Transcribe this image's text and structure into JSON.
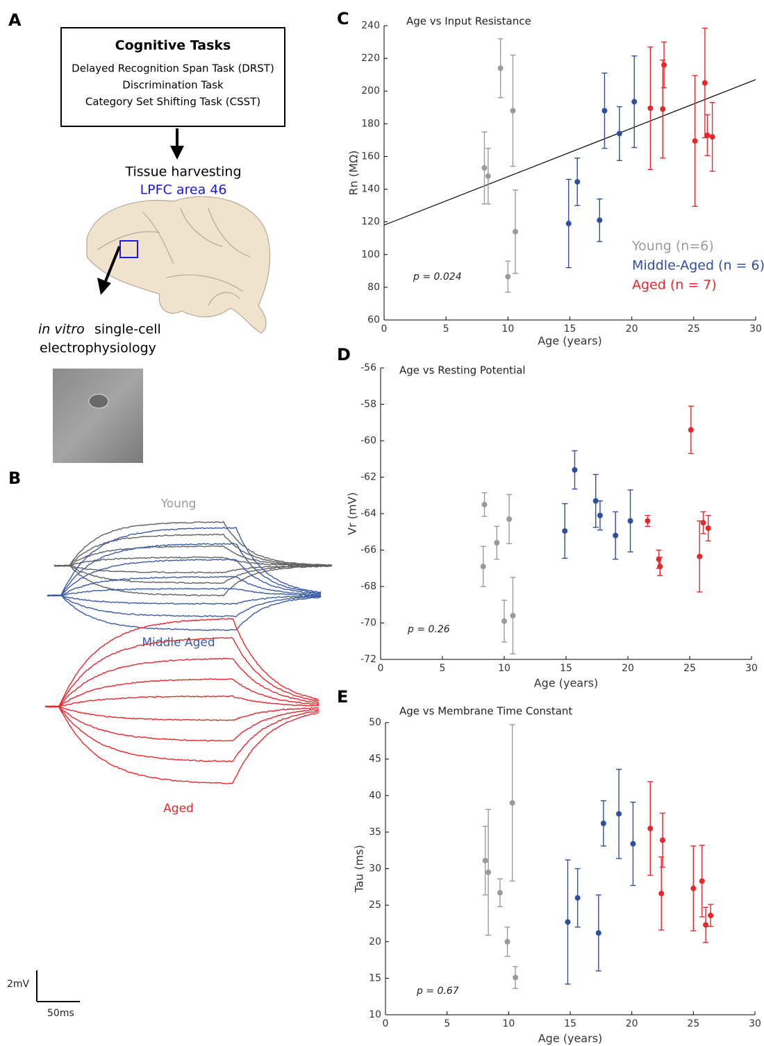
{
  "panel_a": {
    "label": "A",
    "box_title": "Cognitive Tasks",
    "box_lines": [
      "Delayed Recognition Span Task (DRST)",
      "Discrimination Task",
      "Category Set Shifting Task (CSST)"
    ],
    "step": "Tissue harvesting",
    "region": "LPFC area 46",
    "method_italic": "in vitro",
    "method": "single-cell",
    "method_line2": "electrophysiology"
  },
  "panel_b": {
    "label": "B",
    "traces": [
      {
        "label": "Young",
        "label_color": "#9a9a9a",
        "color": "#606060"
      },
      {
        "label": "Middle Aged",
        "label_color": "#3a5aa8",
        "color": "#3a5aa8"
      },
      {
        "label": "Aged",
        "label_color": "#e8262b",
        "color": "#e8262b"
      }
    ],
    "scale_y": "2mV",
    "scale_x": "50ms"
  },
  "chart_data": [
    {
      "type": "scatter",
      "panel": "C",
      "title": "Age vs Input Resistance",
      "x_label": "Age (years)",
      "y_label": "Rn (MΩ)",
      "annotation": "p = 0.024",
      "xlim": [
        0,
        30
      ],
      "xticks": [
        0,
        5,
        10,
        15,
        20,
        25,
        30
      ],
      "ylim": [
        60,
        240
      ],
      "yticks": [
        60,
        80,
        100,
        120,
        140,
        160,
        180,
        200,
        220,
        240
      ],
      "fit": {
        "x": [
          0,
          30
        ],
        "values": [
          118,
          207
        ],
        "color": "#000000"
      },
      "series": [
        {
          "name": "Young (n=6)",
          "color": "#9a9a9a",
          "x": [
            8.1,
            8.4,
            9.4,
            10.0,
            10.4,
            10.6
          ],
          "values": [
            153,
            148,
            214,
            86.5,
            188,
            114
          ],
          "errors": [
            22,
            17,
            18,
            9.5,
            34,
            25.5
          ]
        },
        {
          "name": "Middle-Aged (n = 6)",
          "color": "#2f4e9e",
          "x": [
            14.9,
            15.6,
            17.4,
            17.8,
            19.0,
            20.2
          ],
          "values": [
            119,
            144.5,
            121,
            188,
            174,
            193.5
          ],
          "errors": [
            27,
            14.5,
            13,
            23,
            16.5,
            28
          ]
        },
        {
          "name": "Aged (n = 7)",
          "color": "#e8262b",
          "x": [
            21.5,
            22.5,
            22.6,
            25.1,
            25.9,
            26.1,
            26.5
          ],
          "values": [
            189.5,
            189,
            216,
            169.5,
            205,
            173,
            172
          ],
          "errors": [
            37.5,
            30,
            14,
            40,
            33.5,
            12.5,
            21
          ]
        }
      ]
    },
    {
      "type": "scatter",
      "panel": "D",
      "title": "Age vs Resting Potential",
      "x_label": "Age (years)",
      "y_label": "Vr (mV)",
      "annotation": "p = 0.26",
      "xlim": [
        0,
        30
      ],
      "xticks": [
        0,
        5,
        10,
        15,
        20,
        25,
        30
      ],
      "ylim": [
        -72,
        -56
      ],
      "yticks": [
        -72,
        -70,
        -68,
        -66,
        -64,
        -62,
        -60,
        -58,
        -56
      ],
      "series": [
        {
          "color": "#9a9a9a",
          "x": [
            8.3,
            8.4,
            9.4,
            10.0,
            10.4,
            10.7
          ],
          "values": [
            -66.9,
            -63.5,
            -65.6,
            -69.9,
            -64.3,
            -69.6
          ],
          "errors": [
            1.1,
            0.65,
            0.9,
            1.15,
            1.35,
            2.1
          ]
        },
        {
          "color": "#2f4e9e",
          "x": [
            14.9,
            15.7,
            17.4,
            17.75,
            19.0,
            20.2
          ],
          "values": [
            -64.95,
            -61.6,
            -63.3,
            -64.1,
            -65.2,
            -64.4
          ],
          "errors": [
            1.5,
            1.05,
            1.45,
            0.8,
            1.3,
            1.7
          ]
        },
        {
          "color": "#e8262b",
          "x": [
            21.6,
            22.5,
            22.6,
            25.1,
            25.8,
            26.1,
            26.5
          ],
          "values": [
            -64.4,
            -66.5,
            -66.9,
            -59.4,
            -66.35,
            -64.5,
            -64.8
          ],
          "errors": [
            0.3,
            0.5,
            0.5,
            1.3,
            1.95,
            0.6,
            0.7
          ]
        }
      ]
    },
    {
      "type": "scatter",
      "panel": "E",
      "title": "Age vs Membrane Time Constant",
      "x_label": "Age (years)",
      "y_label": "Tau (ms)",
      "annotation": "p = 0.67",
      "xlim": [
        0,
        30
      ],
      "xticks": [
        0,
        5,
        10,
        15,
        20,
        25,
        30
      ],
      "ylim": [
        10,
        50
      ],
      "yticks": [
        10,
        15,
        20,
        25,
        30,
        35,
        40,
        45,
        50
      ],
      "series": [
        {
          "color": "#9a9a9a",
          "x": [
            8.1,
            8.35,
            9.3,
            9.9,
            10.3,
            10.55
          ],
          "values": [
            31.1,
            29.5,
            26.7,
            20,
            39,
            15.1
          ],
          "errors": [
            4.7,
            8.6,
            1.9,
            2,
            10.7,
            1.5
          ]
        },
        {
          "color": "#2f4e9e",
          "x": [
            14.8,
            15.6,
            17.3,
            17.7,
            18.95,
            20.1
          ],
          "values": [
            22.7,
            26,
            21.2,
            36.2,
            37.5,
            33.4
          ],
          "errors": [
            8.5,
            4,
            5.2,
            3.1,
            6.1,
            5.7
          ]
        },
        {
          "color": "#e8262b",
          "x": [
            21.5,
            22.5,
            22.4,
            25.0,
            25.7,
            26.0,
            26.4
          ],
          "values": [
            35.5,
            33.9,
            26.6,
            27.3,
            28.3,
            22.3,
            23.6
          ],
          "errors": [
            6.4,
            3.7,
            5,
            5.8,
            4.9,
            2.4,
            1.5
          ]
        }
      ]
    }
  ]
}
